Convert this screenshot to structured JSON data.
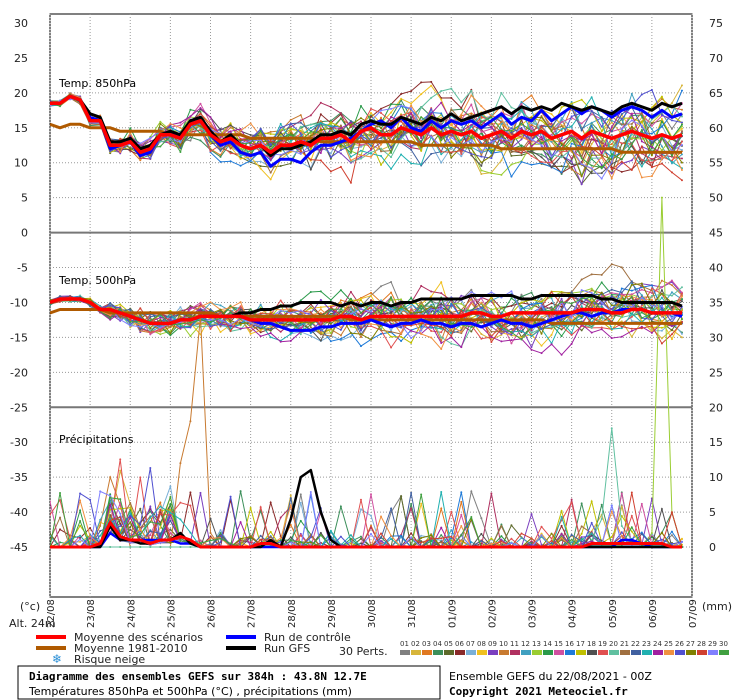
{
  "chart_data": {
    "type": "line",
    "left_axis": {
      "unit": "(°c)",
      "min": -45,
      "max": 30,
      "step": 5,
      "ticks": [
        30,
        25,
        20,
        15,
        10,
        5,
        0,
        -5,
        -10,
        -15,
        -20,
        -25,
        -30,
        -35,
        -40,
        -45
      ]
    },
    "right_axis": {
      "unit": "(mm)",
      "ticks": [
        75,
        70,
        65,
        60,
        55,
        50,
        45,
        40,
        35,
        30,
        25,
        20,
        15,
        10,
        5,
        0
      ]
    },
    "x_ticks": [
      "22/08",
      "23/08",
      "24/08",
      "25/08",
      "26/08",
      "27/08",
      "28/08",
      "29/08",
      "30/08",
      "31/08",
      "01/09",
      "02/09",
      "03/09",
      "04/09",
      "05/09",
      "06/09",
      "07/09"
    ],
    "panels": [
      {
        "label": "Temp. 850hPa",
        "grid_from": 20,
        "grid_to": 0
      },
      {
        "label": "Temp. 500hPa",
        "grid_from": -5,
        "grid_to": -20
      },
      {
        "label": "Précipitations",
        "grid_from": -30,
        "grid_to": -45
      }
    ],
    "x_steps": 64,
    "series": {
      "t850_mean": [
        18.5,
        18.5,
        19.5,
        19,
        16,
        16,
        12.5,
        12.5,
        13,
        11.5,
        12,
        14,
        14,
        13.5,
        15.5,
        16,
        14,
        13,
        13.5,
        12.5,
        12,
        12.5,
        11.5,
        12.5,
        12.5,
        13,
        12.5,
        13.5,
        13.5,
        14,
        13,
        14.5,
        15,
        14,
        14,
        15,
        14.5,
        14,
        15,
        14,
        14.5,
        14,
        14.5,
        13.5,
        14,
        14.5,
        13.5,
        14.5,
        14,
        14.5,
        13.5,
        14,
        14.5,
        13.5,
        14.5,
        14,
        13.5,
        14,
        14.5,
        14,
        13.5,
        14,
        13.5,
        14
      ],
      "t850_clim": [
        15.5,
        15,
        15.5,
        15.5,
        15,
        15,
        15,
        14.5,
        14.5,
        14.5,
        14.5,
        14.5,
        14,
        14,
        14,
        14,
        14,
        14,
        14,
        14,
        13.5,
        13.5,
        13.5,
        13.5,
        13.5,
        13.5,
        13.5,
        13,
        13,
        13,
        13,
        13,
        13,
        13,
        13,
        13,
        13,
        12.5,
        12.5,
        12.5,
        12.5,
        12.5,
        12.5,
        12.5,
        12.5,
        12,
        12,
        12,
        12,
        12,
        12,
        12,
        12,
        12,
        12,
        12,
        12,
        11.5,
        11.5,
        11.5,
        11.5,
        11.5,
        11.5,
        11.5
      ],
      "t850_ctrl": [
        18.5,
        18.5,
        19.5,
        19,
        16.5,
        16,
        12,
        12.5,
        13,
        11,
        11.5,
        14,
        14.5,
        13.5,
        16,
        16.5,
        14,
        12.5,
        13,
        11.5,
        11,
        11.5,
        9.5,
        10.5,
        10.5,
        10,
        11.5,
        12.5,
        12.5,
        13,
        13.5,
        14.5,
        15.5,
        16,
        15,
        16.5,
        15,
        14.5,
        16,
        15,
        16,
        15.5,
        16,
        15,
        16,
        17,
        15.5,
        16.5,
        16,
        17.5,
        16,
        17,
        18,
        17,
        18,
        17.5,
        16.5,
        17.5,
        18,
        17.5,
        16.5,
        17.5,
        16.5,
        17
      ],
      "t850_gfs": [
        18.5,
        18.5,
        19.5,
        19,
        17,
        16.5,
        13,
        13,
        13.5,
        12,
        12.5,
        14,
        14.5,
        14,
        16,
        16.5,
        14.5,
        13,
        14,
        12.5,
        12,
        12.5,
        11,
        12,
        12,
        12.5,
        13,
        14,
        14,
        14.5,
        14,
        15.5,
        16,
        15.5,
        15.5,
        16.5,
        16,
        15.5,
        16.5,
        16,
        17,
        16,
        16.5,
        17,
        17.5,
        18,
        17,
        18,
        17.5,
        18,
        17.5,
        18.5,
        18,
        17.5,
        18,
        17.5,
        17,
        18,
        18.5,
        18,
        17.5,
        18.5,
        18,
        18.5
      ],
      "t500_mean": [
        -10,
        -9.5,
        -9.5,
        -9.5,
        -10,
        -11,
        -11,
        -11.5,
        -12,
        -12.5,
        -13,
        -13,
        -13,
        -12.5,
        -12.5,
        -12,
        -12,
        -12,
        -12,
        -12,
        -12.5,
        -12.5,
        -12.5,
        -12.5,
        -12.5,
        -12.5,
        -12.5,
        -12.5,
        -12.5,
        -12,
        -12,
        -12.5,
        -12,
        -12,
        -12,
        -12,
        -12,
        -12,
        -12,
        -12,
        -12,
        -12,
        -11.5,
        -11.5,
        -12,
        -12,
        -11.5,
        -11.5,
        -11.5,
        -11.5,
        -11.5,
        -11.5,
        -11.5,
        -11,
        -11,
        -11,
        -11.5,
        -11.5,
        -11,
        -11,
        -11.5,
        -11.5,
        -11.5,
        -11.5
      ],
      "t500_clim": [
        -11.5,
        -11,
        -11,
        -11,
        -11,
        -11,
        -11.5,
        -11.5,
        -11.5,
        -11.5,
        -11.5,
        -11.5,
        -11.5,
        -11.5,
        -11.5,
        -11.5,
        -11.5,
        -12,
        -12,
        -12,
        -12,
        -12,
        -12,
        -12,
        -12,
        -12,
        -12,
        -12,
        -12,
        -12,
        -12.5,
        -12.5,
        -12.5,
        -12.5,
        -12.5,
        -12.5,
        -12.5,
        -12.5,
        -12.5,
        -12.5,
        -12.5,
        -12.5,
        -12.5,
        -12.5,
        -12.5,
        -12.5,
        -12.5,
        -12.5,
        -12.5,
        -12.5,
        -13,
        -13,
        -13,
        -13,
        -13,
        -13,
        -13,
        -13,
        -13,
        -13,
        -13,
        -13,
        -13,
        -13
      ],
      "t500_ctrl": [
        -10,
        -9.5,
        -9.5,
        -9.5,
        -10,
        -11,
        -11,
        -11.5,
        -12,
        -12.5,
        -13,
        -13,
        -13,
        -12.5,
        -12.5,
        -12,
        -12,
        -12,
        -12,
        -12,
        -12.5,
        -13,
        -13,
        -13.5,
        -14,
        -14,
        -14,
        -13.5,
        -13.5,
        -13,
        -13,
        -13,
        -12.5,
        -13,
        -13.5,
        -13,
        -13,
        -12.5,
        -13,
        -13,
        -13.5,
        -13,
        -13,
        -13.5,
        -13,
        -12.5,
        -13,
        -13,
        -13.5,
        -13,
        -12.5,
        -12,
        -11.5,
        -11.5,
        -12,
        -11.5,
        -11.5,
        -11,
        -11,
        -11,
        -11.5,
        -11.5,
        -11.5,
        -12
      ],
      "t500_gfs": [
        -10,
        -9.5,
        -9.5,
        -9.5,
        -10,
        -11,
        -11,
        -11.5,
        -12,
        -12.5,
        -13,
        -13,
        -13,
        -12.5,
        -12.5,
        -12,
        -12,
        -12,
        -12,
        -11.5,
        -11.5,
        -11,
        -11,
        -10.5,
        -10.5,
        -10,
        -10,
        -10,
        -10,
        -10.5,
        -10,
        -10.5,
        -10,
        -10,
        -10.5,
        -10,
        -10,
        -9.5,
        -9.5,
        -9.5,
        -9.5,
        -9.5,
        -9,
        -9,
        -9,
        -9,
        -9,
        -9.5,
        -9.5,
        -9,
        -9,
        -9,
        -9,
        -9,
        -9,
        -9.5,
        -9.5,
        -10,
        -10,
        -10,
        -10,
        -10,
        -10,
        -10.5
      ],
      "precip_mean": [
        0,
        0,
        0,
        0,
        0,
        0.5,
        3.5,
        1.5,
        1,
        1,
        0.5,
        1,
        1,
        1.5,
        1,
        0,
        0,
        0,
        0,
        0,
        0,
        0.5,
        0.5,
        0,
        0,
        0,
        0,
        0,
        0,
        0,
        0,
        0,
        0,
        0,
        0,
        0,
        0,
        0,
        0,
        0,
        0,
        0,
        0,
        0,
        0,
        0,
        0,
        0,
        0,
        0,
        0,
        0,
        0,
        0,
        0.5,
        0.5,
        0.5,
        0.5,
        0.5,
        0.5,
        0.5,
        0.5,
        0,
        0
      ],
      "precip_ctrl": [
        0,
        0,
        0,
        0,
        0,
        0,
        2,
        1,
        1,
        1,
        1,
        1,
        1,
        0.5,
        0.5,
        0,
        0,
        0,
        0,
        0,
        0,
        0,
        0,
        0,
        0,
        0,
        0,
        0,
        0,
        0,
        0,
        0,
        0,
        0,
        0,
        0,
        0,
        0,
        0,
        0,
        0,
        0,
        0,
        0,
        0,
        0,
        0,
        0,
        0,
        0,
        0,
        0,
        0,
        0,
        0,
        0,
        0,
        1,
        1,
        0.5,
        0,
        0,
        0,
        0
      ],
      "precip_gfs": [
        0,
        0,
        0,
        0,
        0,
        0,
        3,
        1,
        1,
        0.5,
        0.5,
        1,
        1,
        2,
        0.5,
        0,
        0,
        0,
        0,
        0,
        0,
        0,
        1,
        0,
        4,
        10,
        11,
        5,
        1,
        0,
        0,
        0,
        0,
        0,
        0,
        0,
        0,
        0,
        0,
        0,
        0,
        0,
        0,
        0,
        0,
        0,
        0,
        0,
        0,
        0,
        0,
        0,
        0,
        0,
        0,
        0,
        0,
        0,
        0,
        0,
        0,
        0,
        0,
        0
      ],
      "precip_member_a": [
        0,
        0,
        0,
        0,
        0,
        3,
        10,
        6,
        0,
        0,
        0,
        0,
        0,
        12,
        18,
        33,
        2,
        0,
        0,
        0,
        0,
        0,
        0,
        0,
        0,
        0,
        0,
        0,
        0,
        0,
        0,
        0,
        0,
        0,
        0,
        0,
        0,
        0,
        0,
        0,
        0,
        0,
        0,
        0,
        0,
        0,
        0,
        0,
        0,
        0,
        0,
        0,
        0,
        0,
        0,
        0,
        0,
        0,
        0,
        0,
        0,
        0,
        0,
        0
      ],
      "precip_member_b": [
        0,
        0,
        0,
        0,
        0,
        0,
        0,
        0,
        0,
        0,
        0,
        0,
        0,
        0,
        0,
        0,
        0,
        0,
        0,
        0,
        0,
        0,
        0,
        0,
        0,
        0,
        0,
        0,
        0,
        0,
        0,
        0,
        0,
        0,
        0,
        0,
        0,
        0,
        0,
        0,
        0,
        0,
        0,
        0,
        0,
        0,
        0,
        0,
        0,
        0,
        0,
        0,
        0,
        0,
        0,
        0,
        0,
        0,
        0,
        0,
        2,
        50,
        5,
        0
      ],
      "precip_member_c": [
        0,
        0,
        0,
        0,
        0,
        0,
        0,
        0,
        0,
        0,
        0,
        0,
        0,
        0,
        0,
        0,
        0,
        0,
        0,
        0,
        0,
        0,
        0,
        0,
        0,
        0,
        0,
        0,
        0,
        0,
        0,
        0,
        0,
        0,
        0,
        0,
        0,
        0,
        0,
        0,
        0,
        0,
        0,
        0,
        0,
        0,
        0,
        0,
        0,
        0,
        0,
        0,
        0,
        0,
        1,
        4,
        17,
        3,
        1,
        0,
        0,
        0,
        0,
        0
      ]
    },
    "legend": [
      {
        "label": "Moyenne des scénarios",
        "color": "#ff0000",
        "col": 1
      },
      {
        "label": "Run de contrôle",
        "color": "#0000ff",
        "col": 2
      },
      {
        "label": "Moyenne 1981-2010",
        "color": "#b05a00",
        "col": 1
      },
      {
        "label": "Run GFS",
        "color": "#000000",
        "col": 2
      },
      {
        "label": "Risque neige",
        "color": "#2a8fd6",
        "col": 1
      }
    ],
    "perts_label": "30 Perts.",
    "perts": [
      {
        "n": "01",
        "c": "#808080"
      },
      {
        "n": "02",
        "c": "#d7b53a"
      },
      {
        "n": "03",
        "c": "#e07820"
      },
      {
        "n": "04",
        "c": "#3c8f5a"
      },
      {
        "n": "05",
        "c": "#5d6a2a"
      },
      {
        "n": "06",
        "c": "#8a2a2a"
      },
      {
        "n": "07",
        "c": "#7ab0d8"
      },
      {
        "n": "08",
        "c": "#f0c020"
      },
      {
        "n": "09",
        "c": "#7a3fbf"
      },
      {
        "n": "10",
        "c": "#c87a30"
      },
      {
        "n": "11",
        "c": "#b03060"
      },
      {
        "n": "12",
        "c": "#40a0c0"
      },
      {
        "n": "13",
        "c": "#9acd32"
      },
      {
        "n": "14",
        "c": "#2a9a4a"
      },
      {
        "n": "15",
        "c": "#d050a0"
      },
      {
        "n": "16",
        "c": "#1e7ad8"
      },
      {
        "n": "17",
        "c": "#c0c000"
      },
      {
        "n": "18",
        "c": "#505050"
      },
      {
        "n": "19",
        "c": "#e05050"
      },
      {
        "n": "20",
        "c": "#60c0a0"
      },
      {
        "n": "21",
        "c": "#a07040"
      },
      {
        "n": "22",
        "c": "#4060a0"
      },
      {
        "n": "23",
        "c": "#20b0b0"
      },
      {
        "n": "24",
        "c": "#a020a0"
      },
      {
        "n": "25",
        "c": "#f09040"
      },
      {
        "n": "26",
        "c": "#5050d0"
      },
      {
        "n": "27",
        "c": "#808000"
      },
      {
        "n": "28",
        "c": "#d04030"
      },
      {
        "n": "29",
        "c": "#8080ff"
      },
      {
        "n": "30",
        "c": "#40a040"
      }
    ]
  },
  "alt_label": "Alt. 24m",
  "footer": {
    "title": "Diagramme des ensembles GEFS sur 384h : 43.8N 12.7E",
    "subtitle": "Températures 850hPa et 500hPa (°C) , précipitations (mm)",
    "run": "Ensemble GEFS du 22/08/2021 - 00Z",
    "copyright": "Copyright 2021 Meteociel.fr"
  }
}
